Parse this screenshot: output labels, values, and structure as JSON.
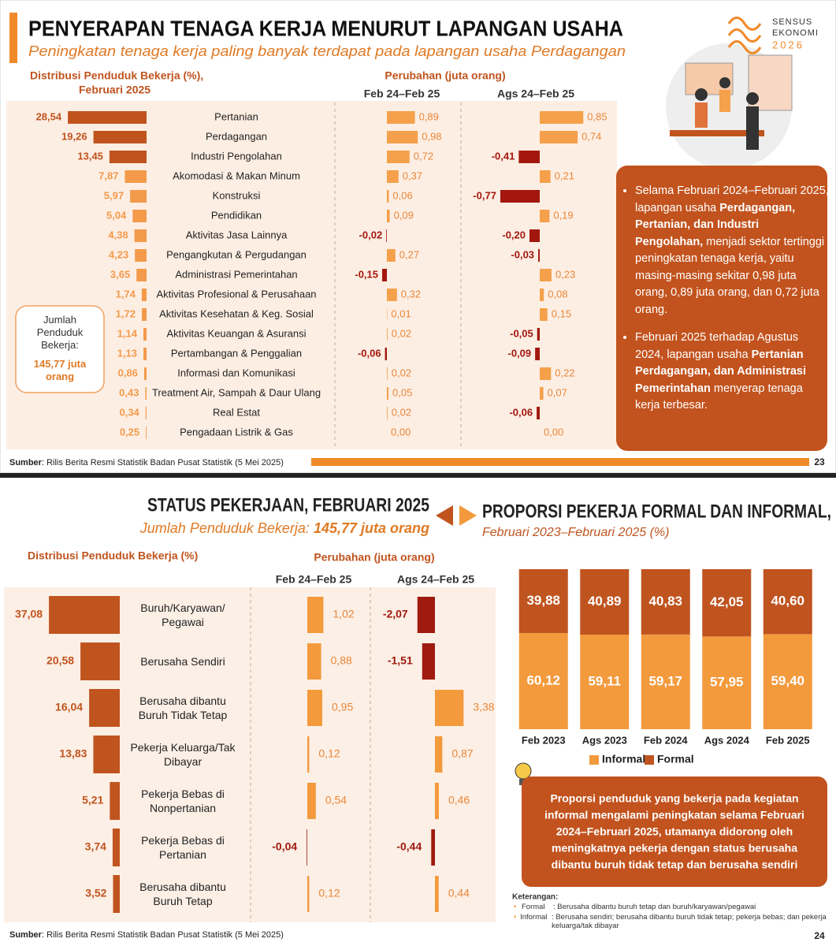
{
  "slide1": {
    "title": "PENYERAPAN TENAGA KERJA MENURUT LAPANGAN USAHA",
    "subtitle": "Peningkatan tenaga kerja paling banyak terdapat pada lapangan usaha Perdagangan",
    "change_header": "Perubahan (juta orang)",
    "jumlah_label": "Jumlah Penduduk Bekerja:",
    "jumlah_value": "145,77 juta orang",
    "bullets": [
      [
        "Selama Februari 2024–Februari 2025, lapangan usaha ",
        "Perdagangan, Pertanian, dan Industri Pengolahan,",
        " menjadi sektor tertinggi peningkatan tenaga kerja, yaitu masing-masing sekitar 0,98 juta orang, 0,89 juta orang, dan 0,72 juta orang."
      ],
      [
        "Februari 2025 terhadap Agustus 2024, lapangan usaha ",
        "Pertanian Perdagangan, dan Administrasi Pemerintahan",
        " menyerap tenaga kerja terbesar."
      ]
    ],
    "source_label": "Sumber",
    "source": ": Rilis Berita Resmi Statistik Badan Pusat Statistik (5 Mei 2025)",
    "page": "23",
    "logo": [
      "SENSUS",
      "EKONOMI",
      "2026"
    ]
  },
  "slide2": {
    "title": "STATUS PEKERJAAN, FEBRUARI 2025",
    "subtitle_label": "Jumlah Penduduk Bekerja: ",
    "subtitle_value": "145,77 juta orang",
    "right_title": "PROPORSI PEKERJA FORMAL DAN INFORMAL,",
    "right_subtitle": "Februari 2023–Februari 2025 (%)",
    "change_header": "Perubahan (juta orang)",
    "callout": "Proporsi penduduk yang bekerja pada kegiatan informal mengalami peningkatan selama Februari 2024–Februari 2025, utamanya didorong oleh meningkatnya pekerja dengan status berusaha dibantu buruh tidak tetap dan berusaha sendiri",
    "keterangan_title": "Keterangan:",
    "keterangan": [
      [
        "Formal",
        ": Berusaha dibantu buruh tetap dan buruh/karyawan/pegawai"
      ],
      [
        "Informal",
        ": Berusaha sendiri; berusaha dibantu buruh tidak tetap; pekerja bebas; dan pekerja keluarga/tak dibayar"
      ]
    ],
    "source_label": "Sumber",
    "source": ": Rilis Berita Resmi Statistik Badan Pusat Statistik (5 Mei 2025)",
    "page": "24"
  },
  "chart_data": [
    {
      "type": "hbar",
      "title": "Distribusi Penduduk Bekerja (%),",
      "subtitle": "Februari 2025",
      "categories": [
        "Pertanian",
        "Perdagangan",
        "Industri Pengolahan",
        "Akomodasi & Makan Minum",
        "Konstruksi",
        "Pendidikan",
        "Aktivitas Jasa Lainnya",
        "Pengangkutan & Pergudangan",
        "Administrasi Pemerintahan",
        "Aktivitas Profesional & Perusahaan",
        "Aktivitas Kesehatan & Keg. Sosial",
        "Aktivitas Keuangan & Asuransi",
        "Pertambangan & Penggalian",
        "Informasi dan Komunikasi",
        "Treatment Air, Sampah & Daur Ulang",
        "Real Estat",
        "Pengadaan Listrik & Gas"
      ],
      "values": [
        28.54,
        19.26,
        13.45,
        7.87,
        5.97,
        5.04,
        4.38,
        4.23,
        3.65,
        1.74,
        1.72,
        1.14,
        1.13,
        0.86,
        0.43,
        0.34,
        0.25
      ],
      "value_labels": [
        "28,54",
        "19,26",
        "13,45",
        "7,87",
        "5,97",
        "5,04",
        "4,38",
        "4,23",
        "3,65",
        "1,74",
        "1,72",
        "1,14",
        "1,13",
        "0,86",
        "0,43",
        "0,34",
        "0,25"
      ],
      "colors": [
        "#c0541f",
        "#c0541f",
        "#c0541f",
        "#f39a4b",
        "#f39a4b",
        "#f39a4b",
        "#f39a4b",
        "#f39a4b",
        "#f39a4b",
        "#f39a4b",
        "#f39a4b",
        "#f39a4b",
        "#f39a4b",
        "#f39a4b",
        "#f39a4b",
        "#f39a4b",
        "#f39a4b"
      ],
      "xlim": [
        0,
        30
      ]
    },
    {
      "type": "diverging",
      "title": "Feb 24–Feb 25",
      "values": [
        0.89,
        0.98,
        0.72,
        0.37,
        0.06,
        0.09,
        -0.02,
        0.27,
        -0.15,
        0.32,
        0.01,
        0.02,
        -0.06,
        0.02,
        0.05,
        0.02,
        0.0
      ],
      "value_labels": [
        "0,89",
        "0,98",
        "0,72",
        "0,37",
        "0,06",
        "0,09",
        "-0,02",
        "0,27",
        "-0,15",
        "0,32",
        "0,01",
        "0,02",
        "-0,06",
        "0,02",
        "0,05",
        "0,02",
        "0,00"
      ],
      "color": "#f5a04a",
      "negative_color": "#a3170f",
      "xlim": [
        -1,
        1
      ]
    },
    {
      "type": "diverging",
      "title": "Ags 24–Feb 25",
      "values": [
        0.85,
        0.74,
        -0.41,
        0.21,
        -0.77,
        0.19,
        -0.2,
        -0.03,
        0.23,
        0.08,
        0.15,
        -0.05,
        -0.09,
        0.22,
        0.07,
        -0.06,
        0.0
      ],
      "value_labels": [
        "0,85",
        "0,74",
        "-0,41",
        "0,21",
        "-0,77",
        "0,19",
        "-0,20",
        "-0,03",
        "0,23",
        "0,08",
        "0,15",
        "-0,05",
        "-0,09",
        "0,22",
        "0,07",
        "-0,06",
        "0,00"
      ],
      "color": "#f5a04a",
      "negative_color": "#a3170f",
      "xlim": [
        -1,
        1
      ]
    },
    {
      "type": "hbar",
      "title": "Distribusi Penduduk Bekerja (%)",
      "categories": [
        "Buruh/Karyawan/\nPegawai",
        "Berusaha Sendiri",
        "Berusaha dibantu\nBuruh Tidak Tetap",
        "Pekerja Keluarga/Tak\nDibayar",
        "Pekerja Bebas di\nNonpertanian",
        "Pekerja Bebas di\nPertanian",
        "Berusaha dibantu\nBuruh Tetap"
      ],
      "values": [
        37.08,
        20.58,
        16.04,
        13.83,
        5.21,
        3.74,
        3.52
      ],
      "value_labels": [
        "37,08",
        "20,58",
        "16,04",
        "13,83",
        "5,21",
        "3,74",
        "3,52"
      ],
      "color": "#c0541f",
      "xlim": [
        0,
        40
      ]
    },
    {
      "type": "diverging",
      "title": "Feb 24–Feb 25",
      "values": [
        1.02,
        0.88,
        0.95,
        0.12,
        0.54,
        -0.04,
        0.12
      ],
      "value_labels": [
        "1,02",
        "0,88",
        "0,95",
        "0,12",
        "0,54",
        "-0,04",
        "0,12"
      ],
      "color": "#f39a3d",
      "negative_color": "#a01a10",
      "xlim": [
        -2,
        2
      ]
    },
    {
      "type": "diverging",
      "title": "Ags 24–Feb 25",
      "values": [
        -2.07,
        -1.51,
        3.38,
        0.87,
        0.46,
        -0.44,
        0.44
      ],
      "value_labels": [
        "-2,07",
        "-1,51",
        "3,38",
        "0,87",
        "0,46",
        "-0,44",
        "0,44"
      ],
      "color": "#f39a3d",
      "negative_color": "#a01a10",
      "xlim": [
        -4,
        4
      ]
    },
    {
      "type": "stacked",
      "categories": [
        "Feb 2023",
        "Ags 2023",
        "Feb 2024",
        "Ags 2024",
        "Feb 2025"
      ],
      "series": [
        {
          "name": "Informal",
          "color": "#f39a3d",
          "values": [
            60.12,
            59.11,
            59.17,
            57.95,
            59.4
          ],
          "value_labels": [
            "60,12",
            "59,11",
            "59,17",
            "57,95",
            "59,40"
          ]
        },
        {
          "name": "Formal",
          "color": "#c0541f",
          "values": [
            39.88,
            40.89,
            40.83,
            42.05,
            40.6
          ],
          "value_labels": [
            "39,88",
            "40,89",
            "40,83",
            "42,05",
            "40,60"
          ]
        }
      ],
      "ylim": [
        0,
        100
      ]
    }
  ]
}
